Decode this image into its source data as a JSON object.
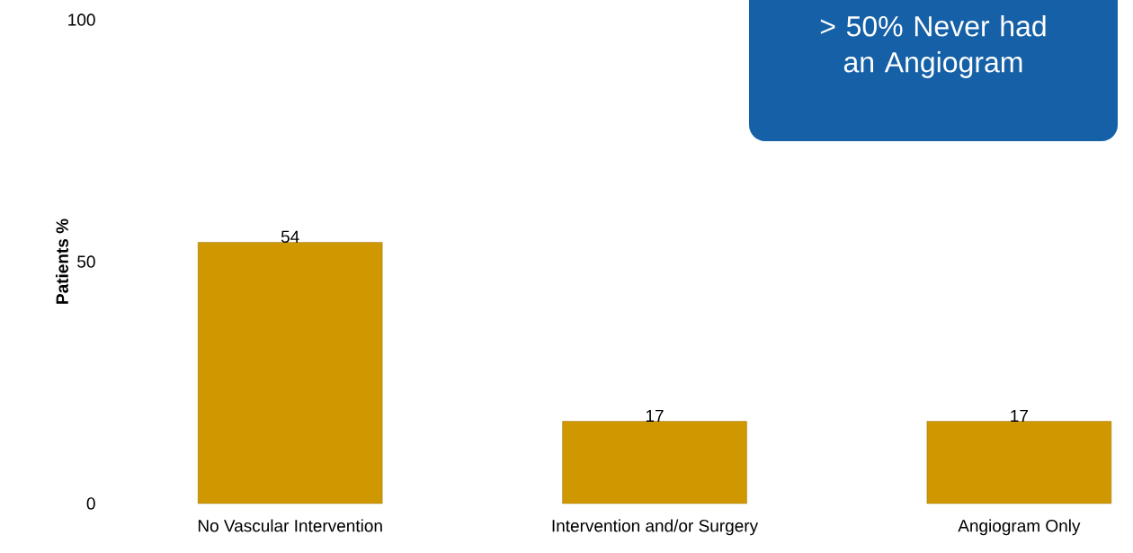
{
  "chart_data": {
    "type": "bar",
    "categories": [
      "No Vascular Intervention",
      "Intervention and/or Surgery",
      "Angiogram Only"
    ],
    "values": [
      54,
      17,
      17
    ],
    "color": "#cf9800",
    "ylim": [
      0,
      100
    ],
    "yticks": [
      0,
      50,
      100
    ],
    "ylabel": "Patients %",
    "data_labels": true,
    "annotations": [
      "> 50% Never had an Angiogram"
    ]
  }
}
